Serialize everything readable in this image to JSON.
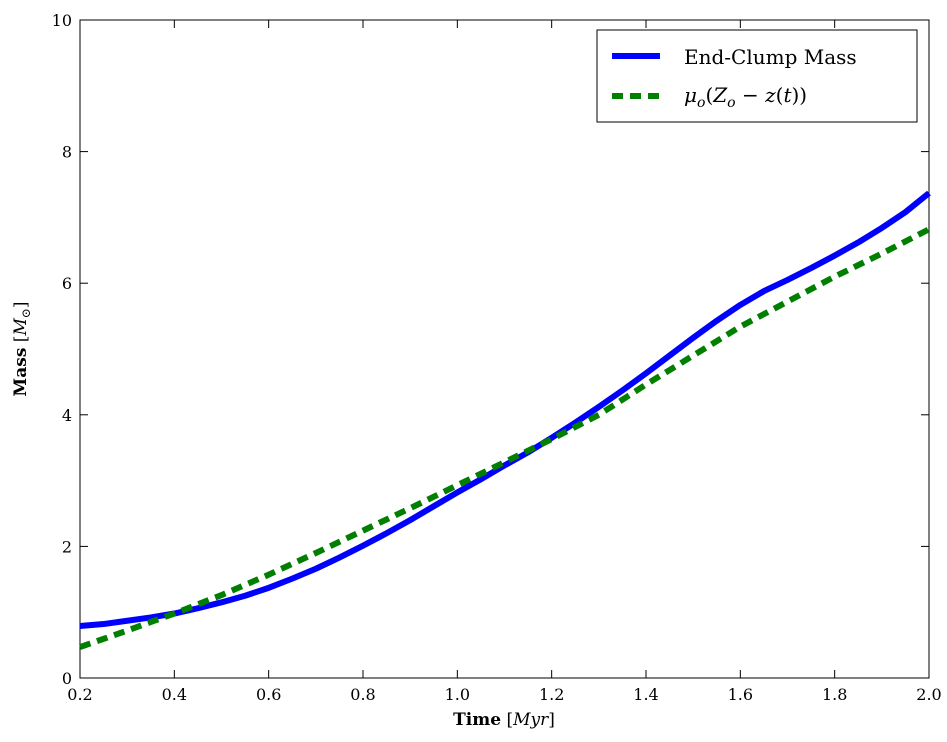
{
  "chart_data": {
    "type": "line",
    "x_axis": {
      "label": "Time",
      "unit": "Myr",
      "range": [
        0.2,
        2.0
      ],
      "ticks": [
        "0.2",
        "0.4",
        "0.6",
        "0.8",
        "1.0",
        "1.2",
        "1.4",
        "1.6",
        "1.8",
        "2.0"
      ],
      "tick_values": [
        0.2,
        0.4,
        0.6,
        0.8,
        1.0,
        1.2,
        1.4,
        1.6,
        1.8,
        2.0
      ]
    },
    "y_axis": {
      "label": "Mass",
      "unit": "M",
      "unit_subscript": "⊙",
      "range": [
        0,
        10
      ],
      "ticks": [
        "0",
        "2",
        "4",
        "6",
        "8",
        "10"
      ],
      "tick_values": [
        0,
        2,
        4,
        6,
        8,
        10
      ]
    },
    "grid": false,
    "legend_position": "top-right",
    "series": [
      {
        "name": "End-Clump Mass",
        "color": "#0000ff",
        "style": "solid",
        "x": [
          0.2,
          0.25,
          0.3,
          0.35,
          0.4,
          0.45,
          0.5,
          0.55,
          0.6,
          0.65,
          0.7,
          0.75,
          0.8,
          0.85,
          0.9,
          0.95,
          1.0,
          1.05,
          1.1,
          1.15,
          1.2,
          1.25,
          1.3,
          1.35,
          1.4,
          1.45,
          1.5,
          1.55,
          1.6,
          1.65,
          1.7,
          1.75,
          1.8,
          1.85,
          1.9,
          1.95,
          2.0
        ],
        "y": [
          0.79,
          0.82,
          0.87,
          0.92,
          0.98,
          1.06,
          1.15,
          1.25,
          1.37,
          1.51,
          1.66,
          1.83,
          2.01,
          2.2,
          2.4,
          2.61,
          2.82,
          3.02,
          3.23,
          3.43,
          3.65,
          3.88,
          4.12,
          4.37,
          4.63,
          4.9,
          5.17,
          5.43,
          5.67,
          5.88,
          6.05,
          6.23,
          6.42,
          6.62,
          6.84,
          7.08,
          7.37
        ]
      },
      {
        "name_parts": {
          "symbol": "μ",
          "symbol_sub": "o",
          "open": "(",
          "Z": "Z",
          "Z_sub": "o",
          "minus": " − ",
          "z": "z",
          "t_open": "(",
          "t": "t",
          "close": "))"
        },
        "color": "#007f00",
        "style": "dashed",
        "x": [
          0.2,
          0.3,
          0.4,
          0.5,
          0.6,
          0.7,
          0.8,
          0.9,
          1.0,
          1.1,
          1.2,
          1.3,
          1.4,
          1.5,
          1.6,
          1.7,
          1.8,
          1.9,
          2.0
        ],
        "y": [
          0.47,
          0.72,
          0.98,
          1.26,
          1.57,
          1.9,
          2.24,
          2.58,
          2.93,
          3.28,
          3.63,
          4.0,
          4.46,
          4.9,
          5.34,
          5.72,
          6.1,
          6.45,
          6.82
        ]
      }
    ]
  }
}
